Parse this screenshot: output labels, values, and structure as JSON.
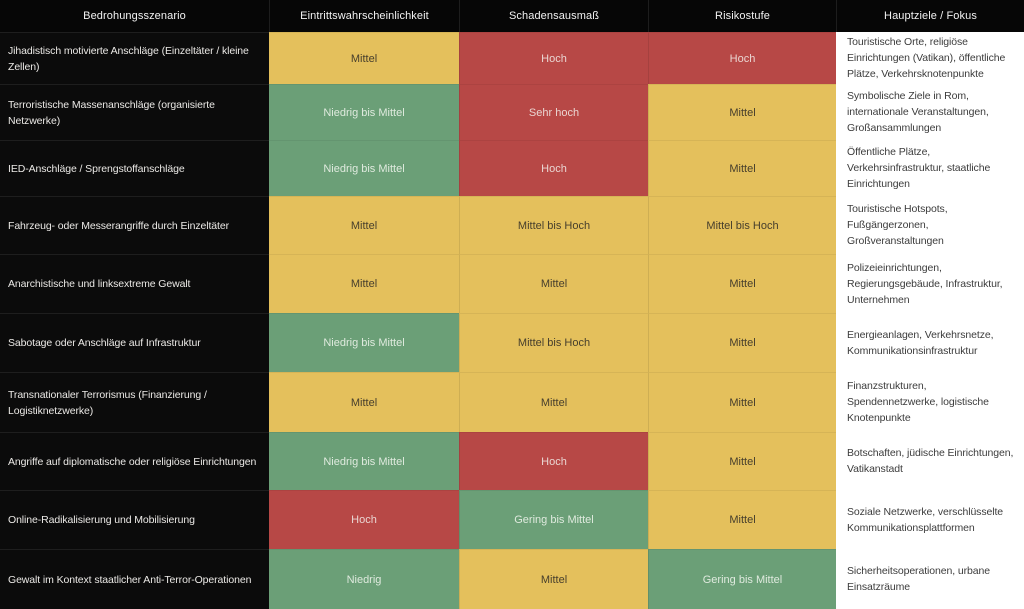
{
  "chart_data": {
    "type": "table",
    "title": "",
    "columns": [
      "Bedrohungsszenario",
      "Eintrittswahrscheinlichkeit",
      "Schadensausmaß",
      "Risikostufe",
      "Hauptziele / Fokus"
    ],
    "rows": [
      {
        "scenario": "Jihadistisch motivierte Anschläge (Einzeltäter / kleine Zellen)",
        "likelihood": {
          "label": "Mittel",
          "level": "yellow"
        },
        "impact": {
          "label": "Hoch",
          "level": "red"
        },
        "risk": {
          "label": "Hoch",
          "level": "red"
        },
        "targets": "Touristische Orte, religiöse Einrichtungen (Vatikan), öffentliche Plätze, Verkehrsknotenpunkte"
      },
      {
        "scenario": "Terroristische Massenanschläge (organisierte Netzwerke)",
        "likelihood": {
          "label": "Niedrig bis Mittel",
          "level": "green"
        },
        "impact": {
          "label": "Sehr hoch",
          "level": "red"
        },
        "risk": {
          "label": "Mittel",
          "level": "yellow"
        },
        "targets": "Symbolische Ziele in Rom, internationale Veranstaltungen, Großansammlungen"
      },
      {
        "scenario": "IED-Anschläge / Sprengstoffanschläge",
        "likelihood": {
          "label": "Niedrig bis Mittel",
          "level": "green"
        },
        "impact": {
          "label": "Hoch",
          "level": "red"
        },
        "risk": {
          "label": "Mittel",
          "level": "yellow"
        },
        "targets": "Öffentliche Plätze, Verkehrsinfrastruktur, staatliche Einrichtungen"
      },
      {
        "scenario": "Fahrzeug- oder Messerangriffe durch Einzeltäter",
        "likelihood": {
          "label": "Mittel",
          "level": "yellow"
        },
        "impact": {
          "label": "Mittel bis Hoch",
          "level": "yellow"
        },
        "risk": {
          "label": "Mittel bis Hoch",
          "level": "yellow"
        },
        "targets": "Touristische Hotspots, Fußgängerzonen, Großveranstaltungen"
      },
      {
        "scenario": "Anarchistische und linksextreme Gewalt",
        "likelihood": {
          "label": "Mittel",
          "level": "yellow"
        },
        "impact": {
          "label": "Mittel",
          "level": "yellow"
        },
        "risk": {
          "label": "Mittel",
          "level": "yellow"
        },
        "targets": "Polizeieinrichtungen, Regierungsgebäude, Infrastruktur, Unternehmen"
      },
      {
        "scenario": "Sabotage oder Anschläge auf Infrastruktur",
        "likelihood": {
          "label": "Niedrig bis Mittel",
          "level": "green"
        },
        "impact": {
          "label": "Mittel bis Hoch",
          "level": "yellow"
        },
        "risk": {
          "label": "Mittel",
          "level": "yellow"
        },
        "targets": "Energieanlagen, Verkehrsnetze, Kommunikationsinfrastruktur"
      },
      {
        "scenario": "Transnationaler Terrorismus (Finanzierung / Logistiknetzwerke)",
        "likelihood": {
          "label": "Mittel",
          "level": "yellow"
        },
        "impact": {
          "label": "Mittel",
          "level": "yellow"
        },
        "risk": {
          "label": "Mittel",
          "level": "yellow"
        },
        "targets": "Finanzstrukturen, Spendennetzwerke, logistische Knotenpunkte"
      },
      {
        "scenario": "Angriffe auf diplomatische oder religiöse Einrichtungen",
        "likelihood": {
          "label": "Niedrig bis Mittel",
          "level": "green"
        },
        "impact": {
          "label": "Hoch",
          "level": "red"
        },
        "risk": {
          "label": "Mittel",
          "level": "yellow"
        },
        "targets": "Botschaften, jüdische Einrichtungen, Vatikanstadt"
      },
      {
        "scenario": "Online-Radikalisierung und Mobilisierung",
        "likelihood": {
          "label": "Hoch",
          "level": "red"
        },
        "impact": {
          "label": "Gering bis Mittel",
          "level": "green"
        },
        "risk": {
          "label": "Mittel",
          "level": "yellow"
        },
        "targets": "Soziale Netzwerke, verschlüsselte Kommunikationsplattformen"
      },
      {
        "scenario": "Gewalt im Kontext staatlicher Anti-Terror-Operationen",
        "likelihood": {
          "label": "Niedrig",
          "level": "green"
        },
        "impact": {
          "label": "Mittel",
          "level": "yellow"
        },
        "risk": {
          "label": "Gering bis Mittel",
          "level": "green"
        },
        "targets": "Sicherheitsoperationen, urbane Einsatzräume"
      }
    ],
    "level_colors": {
      "green": "#6b9f77",
      "yellow": "#e4c05c",
      "red": "#b74846"
    },
    "header_background": "#060606",
    "scenario_column_background": "#0b0b0b",
    "targets_column_background": "#ffffff"
  }
}
